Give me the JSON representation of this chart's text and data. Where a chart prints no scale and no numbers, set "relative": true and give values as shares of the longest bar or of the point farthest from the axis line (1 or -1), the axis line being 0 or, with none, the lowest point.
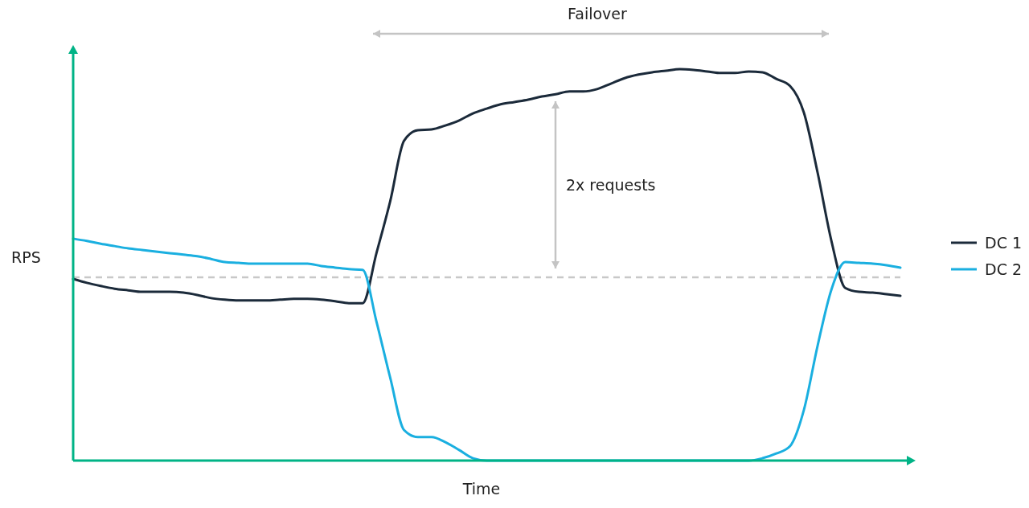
{
  "chart_data": {
    "type": "line",
    "relative": true,
    "xlabel": "Time",
    "ylabel": "RPS",
    "legend": "right",
    "annotations": [
      "Failover",
      "2x requests"
    ],
    "ref_lines": [
      {
        "axis": "y",
        "value": 0.468,
        "color": "#c8c8c8",
        "line_style": "dashed"
      }
    ],
    "categories": [
      null,
      null,
      null,
      null,
      null,
      null,
      null,
      null,
      null,
      null,
      null,
      null,
      null,
      null,
      null,
      null,
      null,
      null,
      null,
      null,
      null,
      null,
      null,
      null,
      null,
      null,
      null,
      null,
      null,
      null,
      null,
      null,
      null,
      null,
      null,
      null,
      null,
      null,
      null,
      null,
      null,
      null,
      null,
      null,
      null,
      null,
      null,
      null,
      null,
      null,
      null,
      null,
      null,
      null,
      null,
      null,
      null,
      null,
      null,
      null,
      null
    ],
    "series": [
      {
        "name": "DC 1",
        "color": "#1b2a3a",
        "values": [
          0.464,
          0.454,
          0.446,
          0.439,
          0.435,
          0.431,
          0.431,
          0.431,
          0.429,
          0.423,
          0.415,
          0.411,
          0.409,
          0.409,
          0.409,
          0.411,
          0.413,
          0.413,
          0.411,
          0.407,
          0.402,
          0.402,
          0.53,
          0.663,
          0.817,
          0.844,
          0.846,
          0.856,
          0.869,
          0.887,
          0.899,
          0.91,
          0.916,
          0.922,
          0.93,
          0.936,
          0.943,
          0.943,
          0.949,
          0.963,
          0.977,
          0.986,
          0.992,
          0.996,
          1,
          0.998,
          0.994,
          0.99,
          0.99,
          0.994,
          0.992,
          0.975,
          0.957,
          0.889,
          0.735,
          0.561,
          0.441,
          0.431,
          0.429,
          0.425,
          0.421
        ]
      },
      {
        "name": "DC 2",
        "color": "#1aafe0",
        "values": [
          0.567,
          0.561,
          0.554,
          0.548,
          0.542,
          0.538,
          0.534,
          0.53,
          0.526,
          0.522,
          0.515,
          0.507,
          0.505,
          0.503,
          0.503,
          0.503,
          0.503,
          0.503,
          0.497,
          0.493,
          0.489,
          0.487,
          0.355,
          0.211,
          0.078,
          0.06,
          0.06,
          0.047,
          0.027,
          0.006,
          0,
          0,
          0,
          0,
          0,
          0,
          0,
          0,
          0,
          0,
          0,
          0,
          0,
          0,
          0,
          0,
          0,
          0,
          0,
          0,
          0.006,
          0.018,
          0.037,
          0.129,
          0.294,
          0.437,
          0.507,
          0.505,
          0.503,
          0.499,
          0.493
        ]
      }
    ]
  }
}
